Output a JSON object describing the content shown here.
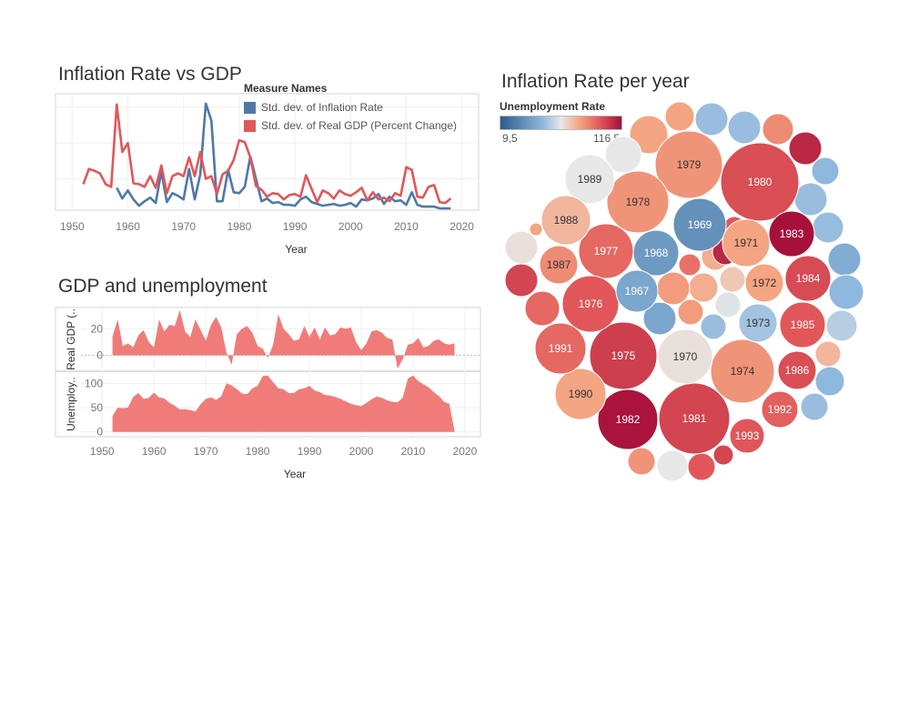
{
  "charts": {
    "inflation_vs_gdp": {
      "title": "Inflation Rate vs GDP"
    },
    "gdp_unemployment": {
      "title": "GDP and unemployment"
    },
    "inflation_per_year": {
      "title": "Inflation Rate per year"
    }
  },
  "legend": {
    "title": "Measure Names",
    "items": [
      {
        "label": "Std. dev. of Inflation Rate",
        "color": "#4e79a7"
      },
      {
        "label": "Std. dev. of Real GDP (Percent Change)",
        "color": "#e15759"
      }
    ]
  },
  "color_legend": {
    "title": "Unemployment Rate",
    "min_label": "9,5",
    "max_label": "116,5"
  },
  "chart_data": [
    {
      "type": "line",
      "title": "Inflation Rate vs GDP",
      "xlabel": "Year",
      "ylabel": "",
      "xlim": [
        1947,
        2023
      ],
      "ylim": [
        0,
        13
      ],
      "xticks": [
        1950,
        1960,
        1970,
        1980,
        1990,
        2000,
        2010,
        2020
      ],
      "series": [
        {
          "name": "Std. dev. of Inflation Rate",
          "color": "#4e79a7",
          "x": [
            1958,
            1959,
            1960,
            1961,
            1962,
            1963,
            1964,
            1965,
            1966,
            1967,
            1968,
            1969,
            1970,
            1971,
            1972,
            1973,
            1974,
            1975,
            1976,
            1977,
            1978,
            1979,
            1980,
            1981,
            1982,
            1983,
            1984,
            1985,
            1986,
            1987,
            1988,
            1989,
            1990,
            1991,
            1992,
            1993,
            1994,
            1995,
            1996,
            1997,
            1998,
            1999,
            2000,
            2001,
            2002,
            2003,
            2004,
            2005,
            2006,
            2007,
            2008,
            2009,
            2010,
            2011,
            2012,
            2013,
            2014,
            2015,
            2016,
            2017,
            2018
          ],
          "values": [
            2.5,
            1.3,
            2.2,
            1.2,
            0.5,
            1.0,
            1.4,
            0.8,
            4.3,
            0.9,
            1.9,
            1.6,
            1.2,
            4.6,
            1.2,
            4.0,
            11.9,
            10.0,
            1.0,
            1.0,
            4.5,
            2.0,
            1.9,
            2.6,
            6.0,
            3.5,
            1.0,
            1.3,
            0.8,
            0.9,
            0.6,
            0.6,
            0.5,
            1.2,
            1.5,
            0.9,
            0.7,
            0.5,
            0.6,
            0.7,
            0.5,
            0.6,
            0.8,
            0.4,
            1.2,
            1.1,
            1.3,
            1.8,
            0.7,
            1.5,
            1.0,
            1.1,
            0.6,
            2.0,
            0.6,
            0.4,
            0.4,
            0.4,
            0.2,
            0.2,
            0.2
          ]
        },
        {
          "name": "Std. dev. of Real GDP (Percent Change)",
          "color": "#e15759",
          "x": [
            1952,
            1953,
            1954,
            1955,
            1956,
            1957,
            1958,
            1959,
            1960,
            1961,
            1962,
            1963,
            1964,
            1965,
            1966,
            1967,
            1968,
            1969,
            1970,
            1971,
            1972,
            1973,
            1974,
            1975,
            1976,
            1977,
            1978,
            1979,
            1980,
            1981,
            1982,
            1983,
            1984,
            1985,
            1986,
            1987,
            1988,
            1989,
            1990,
            1991,
            1992,
            1993,
            1994,
            1995,
            1996,
            1997,
            1998,
            1999,
            2000,
            2001,
            2002,
            2003,
            2004,
            2005,
            2006,
            2007,
            2008,
            2009,
            2010,
            2011,
            2012,
            2013,
            2014,
            2015,
            2016,
            2017,
            2018
          ],
          "values": [
            2.9,
            4.6,
            4.4,
            4.1,
            2.9,
            2.6,
            11.8,
            6.5,
            7.5,
            3.0,
            2.9,
            2.6,
            3.8,
            2.5,
            5.0,
            1.9,
            3.8,
            4.1,
            3.8,
            5.9,
            3.8,
            6.5,
            3.5,
            3.8,
            1.8,
            4.0,
            4.4,
            5.6,
            7.8,
            7.6,
            5.9,
            2.7,
            2.3,
            1.5,
            1.9,
            1.8,
            1.2,
            1.7,
            1.8,
            1.5,
            3.9,
            2.4,
            0.9,
            2.2,
            1.9,
            1.3,
            2.2,
            1.8,
            1.6,
            2.0,
            2.5,
            1.1,
            2.0,
            1.2,
            1.4,
            1.0,
            1.9,
            1.6,
            4.8,
            4.5,
            1.5,
            1.4,
            2.6,
            2.8,
            0.9,
            0.8,
            1.3
          ]
        }
      ]
    },
    {
      "type": "area",
      "title": "GDP and unemployment",
      "xlabel": "Year",
      "xlim": [
        1941,
        2023
      ],
      "xticks": [
        1950,
        1960,
        1970,
        1980,
        1990,
        2000,
        2010,
        2020
      ],
      "color": "#f07c7a",
      "panels": [
        {
          "ylabel": "Real GDP (..",
          "ylim": [
            -12,
            36
          ],
          "yticks": [
            0,
            20
          ],
          "x": [
            1952,
            1953,
            1954,
            1955,
            1956,
            1957,
            1958,
            1959,
            1960,
            1961,
            1962,
            1963,
            1964,
            1965,
            1966,
            1967,
            1968,
            1969,
            1970,
            1971,
            1972,
            1973,
            1974,
            1975,
            1976,
            1977,
            1978,
            1979,
            1980,
            1981,
            1982,
            1983,
            1984,
            1985,
            1986,
            1987,
            1988,
            1989,
            1990,
            1991,
            1992,
            1993,
            1994,
            1995,
            1996,
            1997,
            1998,
            1999,
            2000,
            2001,
            2002,
            2003,
            2004,
            2005,
            2006,
            2007,
            2008,
            2009,
            2010,
            2011,
            2012,
            2013,
            2014,
            2015,
            2016,
            2017,
            2018
          ],
          "values": [
            14,
            27,
            7,
            9,
            6,
            15,
            19,
            10,
            6,
            27,
            18,
            23,
            22,
            34,
            18,
            14,
            27,
            19,
            11,
            23,
            29,
            21,
            2,
            -7,
            16,
            20,
            22,
            17,
            7,
            5,
            -2,
            8,
            31,
            20,
            16,
            11,
            12,
            22,
            14,
            21,
            12,
            21,
            15,
            16,
            21,
            20,
            21,
            10,
            4,
            9,
            18,
            19,
            17,
            13,
            12,
            -10,
            -3,
            8,
            9,
            13,
            6,
            7,
            11,
            12,
            9,
            8,
            9
          ]
        },
        {
          "ylabel": "Unemploy..",
          "ylim": [
            -10,
            125
          ],
          "yticks": [
            0,
            50,
            100
          ],
          "x": [
            1952,
            1953,
            1954,
            1955,
            1956,
            1957,
            1958,
            1959,
            1960,
            1961,
            1962,
            1963,
            1964,
            1965,
            1966,
            1967,
            1968,
            1969,
            1970,
            1971,
            1972,
            1973,
            1974,
            1975,
            1976,
            1977,
            1978,
            1979,
            1980,
            1981,
            1982,
            1983,
            1984,
            1985,
            1986,
            1987,
            1988,
            1989,
            1990,
            1991,
            1992,
            1993,
            1994,
            1995,
            1996,
            1997,
            1998,
            1999,
            2000,
            2001,
            2002,
            2003,
            2004,
            2005,
            2006,
            2007,
            2008,
            2009,
            2010,
            2011,
            2012,
            2013,
            2014,
            2015,
            2016,
            2017,
            2018
          ],
          "values": [
            33,
            50,
            49,
            50,
            72,
            80,
            68,
            70,
            81,
            71,
            69,
            60,
            54,
            46,
            47,
            45,
            42,
            57,
            68,
            71,
            66,
            74,
            100,
            96,
            88,
            79,
            78,
            90,
            95,
            115,
            116,
            102,
            90,
            88,
            80,
            80,
            88,
            90,
            95,
            85,
            82,
            76,
            75,
            72,
            68,
            63,
            58,
            55,
            53,
            60,
            67,
            73,
            70,
            65,
            62,
            61,
            70,
            110,
            116,
            105,
            98,
            92,
            82,
            74,
            62,
            58,
            3
          ]
        }
      ]
    },
    {
      "type": "scatter",
      "subtype": "packed-bubble",
      "title": "Inflation Rate per year",
      "size_measure": "Inflation Rate",
      "color_measure": "Unemployment Rate",
      "color_range": [
        9.5,
        116.5
      ],
      "bubbles": [
        {
          "label": "1980",
          "size": 13.5,
          "color_value": 95
        },
        {
          "label": "1979",
          "size": 11.3,
          "color_value": 78
        },
        {
          "label": "1981",
          "size": 10.3,
          "color_value": 98
        },
        {
          "label": "1974",
          "size": 11.0,
          "color_value": 78
        },
        {
          "label": "1975",
          "size": 9.1,
          "color_value": 100
        },
        {
          "label": "1982",
          "size": 6.2,
          "color_value": 115
        },
        {
          "label": "1978",
          "size": 7.6,
          "color_value": 78
        },
        {
          "label": "1970",
          "size": 5.9,
          "color_value": 60
        },
        {
          "label": "1977",
          "size": 6.5,
          "color_value": 88
        },
        {
          "label": "1976",
          "size": 5.8,
          "color_value": 92
        },
        {
          "label": "1969",
          "size": 5.5,
          "color_value": 27
        },
        {
          "label": "1971",
          "size": 4.3,
          "color_value": 74
        },
        {
          "label": "1983",
          "size": 3.2,
          "color_value": 116
        },
        {
          "label": "1968",
          "size": 4.2,
          "color_value": 30
        },
        {
          "label": "1990",
          "size": 5.4,
          "color_value": 74
        },
        {
          "label": "1989",
          "size": 5.3,
          "color_value": 58
        },
        {
          "label": "1984",
          "size": 3.9,
          "color_value": 96
        },
        {
          "label": "1967",
          "size": 3.1,
          "color_value": 34
        },
        {
          "label": "1973",
          "size": 2.5,
          "color_value": 44
        },
        {
          "label": "1985",
          "size": 3.6,
          "color_value": 92
        },
        {
          "label": "1988",
          "size": 4.1,
          "color_value": 70
        },
        {
          "label": "1987",
          "size": 3.6,
          "color_value": 80
        },
        {
          "label": "1991",
          "size": 4.2,
          "color_value": 88
        },
        {
          "label": "1972",
          "size": 3.3,
          "color_value": 74
        },
        {
          "label": "1986",
          "size": 1.9,
          "color_value": 95
        },
        {
          "label": "1992",
          "size": 3.0,
          "color_value": 90
        },
        {
          "label": "1993",
          "size": 3.0,
          "color_value": 92
        }
      ],
      "unlabeled_bubbles": [
        {
          "color_value": 74
        },
        {
          "color_value": 74
        },
        {
          "color_value": 58
        },
        {
          "color_value": 42
        },
        {
          "color_value": 42
        },
        {
          "color_value": 80
        },
        {
          "color_value": 108
        },
        {
          "color_value": 40
        },
        {
          "color_value": 42
        },
        {
          "color_value": 42
        },
        {
          "color_value": 36
        },
        {
          "color_value": 40
        },
        {
          "color_value": 48
        },
        {
          "color_value": 70
        },
        {
          "color_value": 40
        },
        {
          "color_value": 42
        },
        {
          "color_value": 92
        },
        {
          "color_value": 72
        },
        {
          "color_value": 66
        },
        {
          "color_value": 56
        },
        {
          "color_value": 34
        },
        {
          "color_value": 72
        },
        {
          "color_value": 42
        },
        {
          "color_value": 76
        },
        {
          "color_value": 76
        },
        {
          "color_value": 86
        },
        {
          "color_value": 60
        },
        {
          "color_value": 98
        },
        {
          "color_value": 88
        },
        {
          "color_value": 74
        },
        {
          "color_value": 78
        },
        {
          "color_value": 58
        },
        {
          "color_value": 92
        },
        {
          "color_value": 98
        },
        {
          "color_value": 108
        },
        {
          "color_value": 9.5
        }
      ]
    }
  ]
}
